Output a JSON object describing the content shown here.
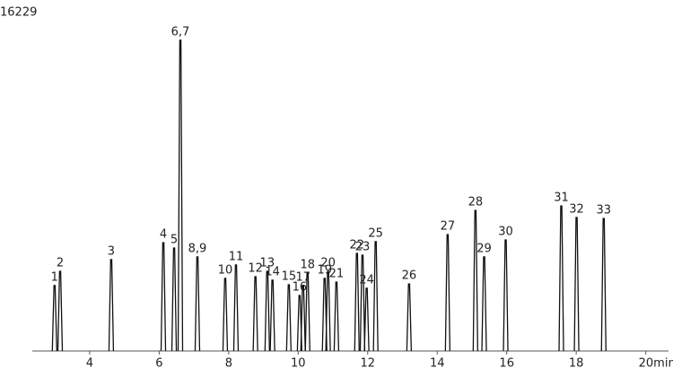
{
  "chart_data": {
    "type": "chromatogram",
    "ylim": [
      0,
      16229
    ],
    "yticks": [
      16229
    ],
    "xlim": [
      2.35,
      20.5
    ],
    "xticks": [
      4,
      6,
      8,
      10,
      12,
      14,
      16,
      18,
      {
        "value": 20,
        "label": "20min"
      }
    ],
    "color": "#111111",
    "labels": [
      "1",
      "2",
      "3",
      "4",
      "5",
      "6,7",
      "8,9",
      "10",
      "11",
      "12",
      "13",
      "14",
      "15",
      "16",
      "17",
      "18",
      "19",
      "20",
      "21",
      "22",
      "23",
      "24",
      "25",
      "26",
      "27",
      "28",
      "29",
      "30",
      "31",
      "32",
      "33"
    ],
    "x": [
      2.99,
      3.15,
      4.62,
      6.12,
      6.43,
      6.61,
      7.1,
      7.9,
      8.21,
      8.77,
      9.11,
      9.26,
      9.73,
      10.04,
      10.14,
      10.27,
      10.76,
      10.86,
      11.1,
      11.69,
      11.85,
      11.97,
      12.23,
      13.19,
      14.3,
      15.1,
      15.35,
      15.97,
      17.57,
      18.01,
      18.79
    ],
    "values": [
      3170,
      3860,
      4430,
      5250,
      4990,
      15060,
      4560,
      3520,
      4170,
      3600,
      3860,
      3430,
      3210,
      2690,
      3170,
      3780,
      3520,
      3860,
      3340,
      4730,
      4640,
      3040,
      5300,
      3250,
      5640,
      6810,
      4560,
      5380,
      7030,
      6470,
      6420
    ]
  }
}
